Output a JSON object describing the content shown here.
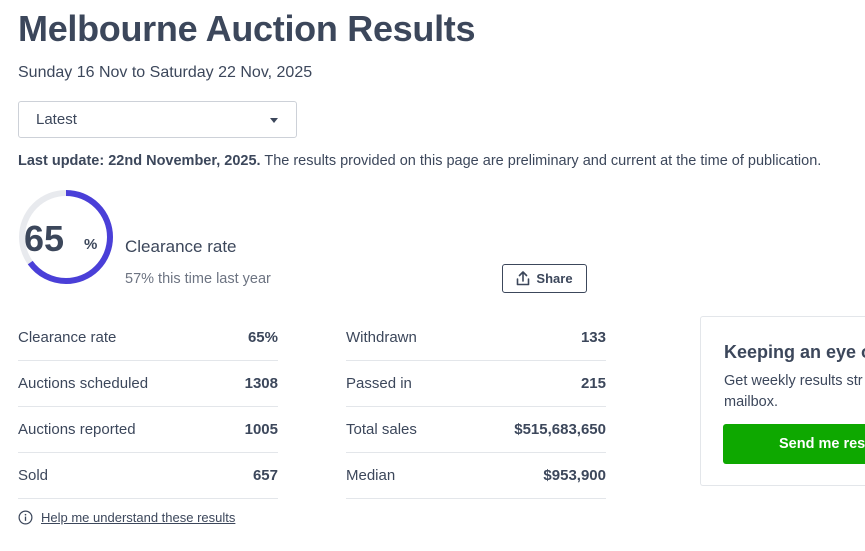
{
  "page": {
    "title": "Melbourne Auction Results",
    "date_range": "Sunday 16 Nov to Saturday 22 Nov, 2025"
  },
  "period_select": {
    "selected": "Latest"
  },
  "update": {
    "label": "Last update: 22nd November, 2025.",
    "note": "The results provided on this page are preliminary and current at the time of publication."
  },
  "clearance": {
    "value": "65",
    "percent_sign": "%",
    "rate_fraction": 0.65,
    "label": "Clearance rate",
    "last_year": "57% this time last year"
  },
  "share": {
    "label": "Share",
    "icon": "share-upload-icon"
  },
  "stats_left": [
    {
      "label": "Clearance rate",
      "value": "65%"
    },
    {
      "label": "Auctions scheduled",
      "value": "1308"
    },
    {
      "label": "Auctions reported",
      "value": "1005"
    },
    {
      "label": "Sold",
      "value": "657"
    }
  ],
  "stats_right": [
    {
      "label": "Withdrawn",
      "value": "133"
    },
    {
      "label": "Passed in",
      "value": "215"
    },
    {
      "label": "Total sales",
      "value": "$515,683,650"
    },
    {
      "label": "Median",
      "value": "$953,900"
    }
  ],
  "help": {
    "label": "Help me understand these results",
    "icon": "info-icon"
  },
  "promo": {
    "title": "Keeping an eye o",
    "text": "Get weekly results str your mailbox.",
    "button": "Send me resu"
  },
  "colors": {
    "gauge_fill": "#4a3fd8",
    "gauge_track": "#e8eaee",
    "button_green": "#0ea800",
    "text": "#3c475b"
  }
}
